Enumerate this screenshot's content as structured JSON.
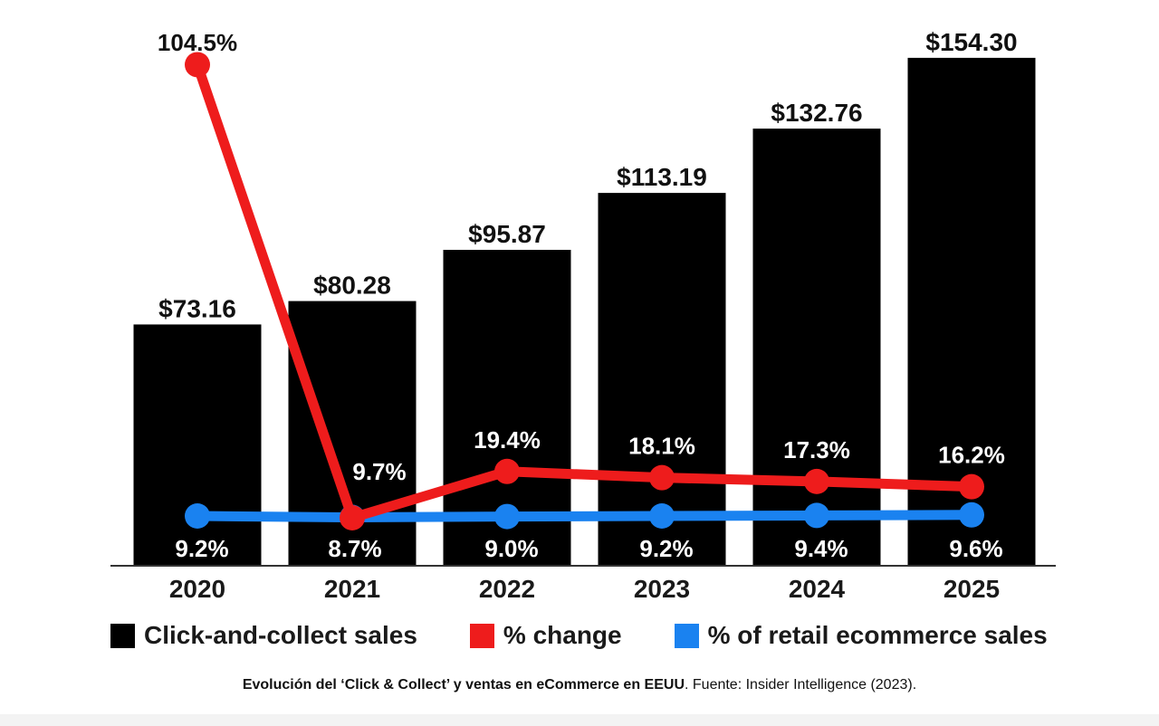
{
  "chart_data": {
    "type": "bar",
    "categories": [
      "2020",
      "2021",
      "2022",
      "2023",
      "2024",
      "2025"
    ],
    "series": [
      {
        "name": "Click-and-collect sales",
        "kind": "bar",
        "color": "#000000",
        "values": [
          73.16,
          80.28,
          95.87,
          113.19,
          132.76,
          154.3
        ],
        "labels": [
          "$73.16",
          "$80.28",
          "$95.87",
          "$113.19",
          "$132.76",
          "$154.30"
        ]
      },
      {
        "name": "% change",
        "kind": "line",
        "color": "#ee1c1c",
        "values": [
          104.5,
          9.7,
          19.4,
          18.1,
          17.3,
          16.2
        ],
        "labels": [
          "104.5%",
          "9.7%",
          "19.4%",
          "18.1%",
          "17.3%",
          "16.2%"
        ]
      },
      {
        "name": "% of retail ecommerce sales",
        "kind": "line",
        "color": "#1a82f0",
        "values": [
          9.2,
          8.7,
          9.0,
          9.2,
          9.4,
          9.6
        ],
        "labels": [
          "9.2%",
          "8.7%",
          "9.0%",
          "9.2%",
          "9.4%",
          "9.6%"
        ]
      }
    ],
    "grid": false,
    "legend_position": "bottom"
  },
  "caption": {
    "bold": "Evolución del ‘Click & Collect’ y ventas en eCommerce en EEUU",
    "rest": ". Fuente: Insider Intelligence (2023)."
  }
}
